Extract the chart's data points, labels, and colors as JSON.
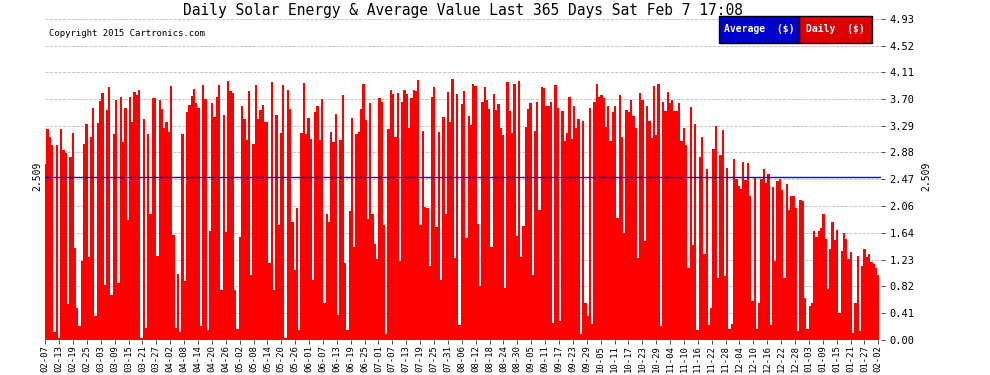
{
  "title": "Daily Solar Energy & Average Value Last 365 Days Sat Feb 7 17:08",
  "copyright": "Copyright 2015 Cartronics.com",
  "average_value": 2.509,
  "ymax": 4.93,
  "ymin": 0.0,
  "yticks": [
    0.0,
    0.41,
    0.82,
    1.23,
    1.64,
    2.06,
    2.47,
    2.88,
    3.29,
    3.7,
    4.11,
    4.52,
    4.93
  ],
  "bar_color": "#FF0000",
  "avg_line_color": "#0000FF",
  "background_color": "#FFFFFF",
  "grid_color": "#BBBBBB",
  "legend_avg_bg": "#0000CC",
  "legend_daily_bg": "#DD0000",
  "x_tick_labels": [
    "02-07",
    "02-13",
    "02-19",
    "02-25",
    "03-03",
    "03-09",
    "03-15",
    "03-21",
    "03-27",
    "04-02",
    "04-08",
    "04-14",
    "04-20",
    "04-26",
    "05-02",
    "05-08",
    "05-14",
    "05-20",
    "05-26",
    "06-01",
    "06-07",
    "06-13",
    "06-19",
    "06-25",
    "07-01",
    "07-07",
    "07-13",
    "07-19",
    "07-25",
    "07-31",
    "08-06",
    "08-12",
    "08-18",
    "08-24",
    "08-30",
    "09-05",
    "09-11",
    "09-17",
    "09-23",
    "09-29",
    "10-05",
    "10-11",
    "10-17",
    "10-23",
    "10-29",
    "11-04",
    "11-10",
    "11-16",
    "11-22",
    "11-28",
    "12-04",
    "12-10",
    "12-16",
    "12-22",
    "12-28",
    "01-03",
    "01-09",
    "01-15",
    "01-21",
    "01-27",
    "02-02"
  ],
  "num_days": 365
}
